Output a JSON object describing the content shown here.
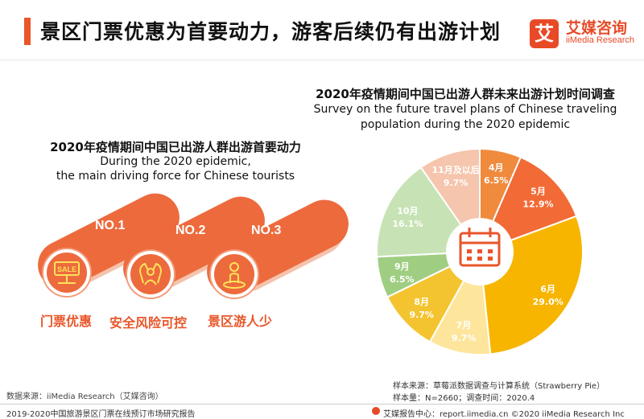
{
  "header": {
    "title": "景区门票优惠为首要动力，游客后续仍有出游计划",
    "logo_mark": "艾",
    "logo_cn": "艾媒咨询",
    "logo_en": "iiMedia Research"
  },
  "left_panel": {
    "title_cn": "2020年疫情期间中国已出游人群出游首要动力",
    "title_en_line1": "During the 2020 epidemic,",
    "title_en_line2": "the main driving force for Chinese tourists",
    "drivers": [
      {
        "rank": "NO.1",
        "label": "门票优惠",
        "icon": "sale-sign-icon",
        "icon_text": "SALE"
      },
      {
        "rank": "NO.2",
        "label": "安全风险可控",
        "icon": "protected-person-icon"
      },
      {
        "rank": "NO.3",
        "label": "景区游人少",
        "icon": "single-person-icon"
      }
    ]
  },
  "colors": {
    "accent": "#e8562a",
    "pill": "#ed6a3d",
    "pill_light": "#f5c3ad"
  },
  "chart_data": {
    "type": "pie",
    "title_cn": "2020年疫情期间中国已出游人群未来出游计划时间调查",
    "title_en_line1": "Survey on the future travel plans of Chinese traveling",
    "title_en_line2": "population during the 2020 epidemic",
    "unit": "%",
    "center_icon": "calendar-icon",
    "slices": [
      {
        "label": "4月",
        "value": 6.5,
        "value_label": "6.5%",
        "color": "#f08a3c"
      },
      {
        "label": "5月",
        "value": 12.9,
        "value_label": "12.9%",
        "color": "#f26a35"
      },
      {
        "label": "6月",
        "value": 29.0,
        "value_label": "29.0%",
        "color": "#f7b500"
      },
      {
        "label": "7月",
        "value": 9.7,
        "value_label": "9.7%",
        "color": "#fde59b"
      },
      {
        "label": "8月",
        "value": 9.7,
        "value_label": "9.7%",
        "color": "#f4c430"
      },
      {
        "label": "9月",
        "value": 6.5,
        "value_label": "6.5%",
        "color": "#9fce82"
      },
      {
        "label": "10月",
        "value": 16.1,
        "value_label": "16.1%",
        "color": "#c7e3b5"
      },
      {
        "label": "11月及以后",
        "value": 9.7,
        "value_label": "9.7%",
        "color": "#f5c5ad"
      }
    ]
  },
  "notes": {
    "source_left": "数据来源：iiMedia Research（艾媒咨询）",
    "sample_source": "样本来源：草莓派数据调查与计算系统（Strawberry Pie）",
    "sample_size": "样本量：N=2660；调查时间：2020.4"
  },
  "footer": {
    "report_name": "2019-2020中国旅游景区门票在线预订市场研究报告",
    "report_center": "艾媒报告中心：report.iimedia.cn  ©2020  iiMedia Research  Inc"
  }
}
